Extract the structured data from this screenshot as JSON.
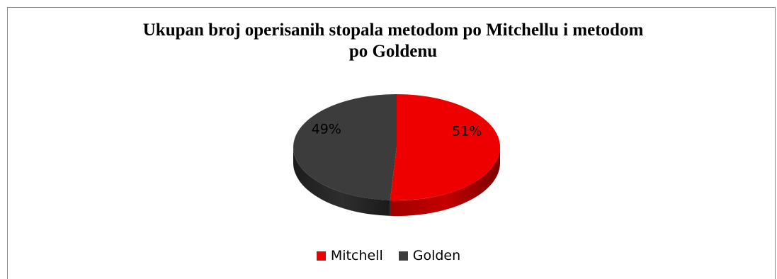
{
  "chart_data": {
    "type": "pie",
    "title_lines": [
      "Ukupan broj operisanih stopala metodom po Mitchellu i metodom",
      "po Goldenu"
    ],
    "categories": [
      "Mitchell",
      "Golden"
    ],
    "values": [
      51,
      49
    ],
    "labels": [
      "51%",
      "49%"
    ],
    "colors": [
      "#ee0000",
      "#3c3c3c"
    ],
    "legend_position": "bottom",
    "style": "3d"
  }
}
